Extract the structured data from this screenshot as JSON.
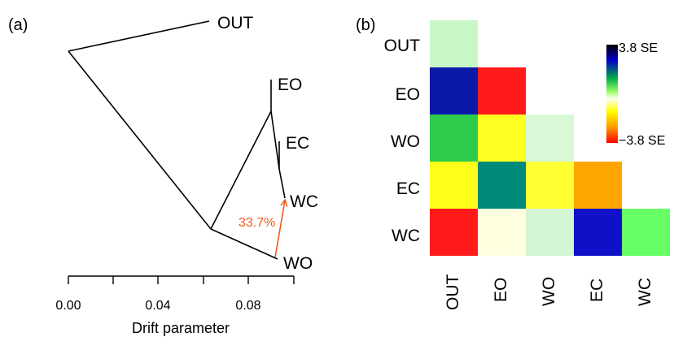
{
  "panel_a": {
    "label": "(a)",
    "tips": [
      "OUT",
      "EO",
      "EC",
      "WC",
      "WO"
    ],
    "migration_label": "33.7%",
    "axis": {
      "ticks": [
        "0.00",
        "0.04",
        "0.08"
      ],
      "xlabel": "Drift parameter"
    }
  },
  "panel_b": {
    "label": "(b)",
    "row_labels": [
      "OUT",
      "EO",
      "WO",
      "EC",
      "WC"
    ],
    "col_labels": [
      "OUT",
      "EO",
      "WO",
      "EC",
      "WC"
    ],
    "legend": {
      "max_label": "3.8 SE",
      "min_label": "−3.8 SE"
    }
  },
  "colors": {
    "migration": "#f05a1a",
    "heatmap_cells": [
      [
        "#c7f7c7"
      ],
      [
        "#0a1aa8",
        "#ff1a1a"
      ],
      [
        "#2ecc4a",
        "#ffff22",
        "#d8f8d8"
      ],
      [
        "#ffff1a",
        "#008a7a",
        "#ffff33",
        "#ffa500"
      ],
      [
        "#ff1a1a",
        "#ffffe0",
        "#d4f6d4",
        "#1010c8",
        "#66ff66"
      ]
    ]
  }
}
